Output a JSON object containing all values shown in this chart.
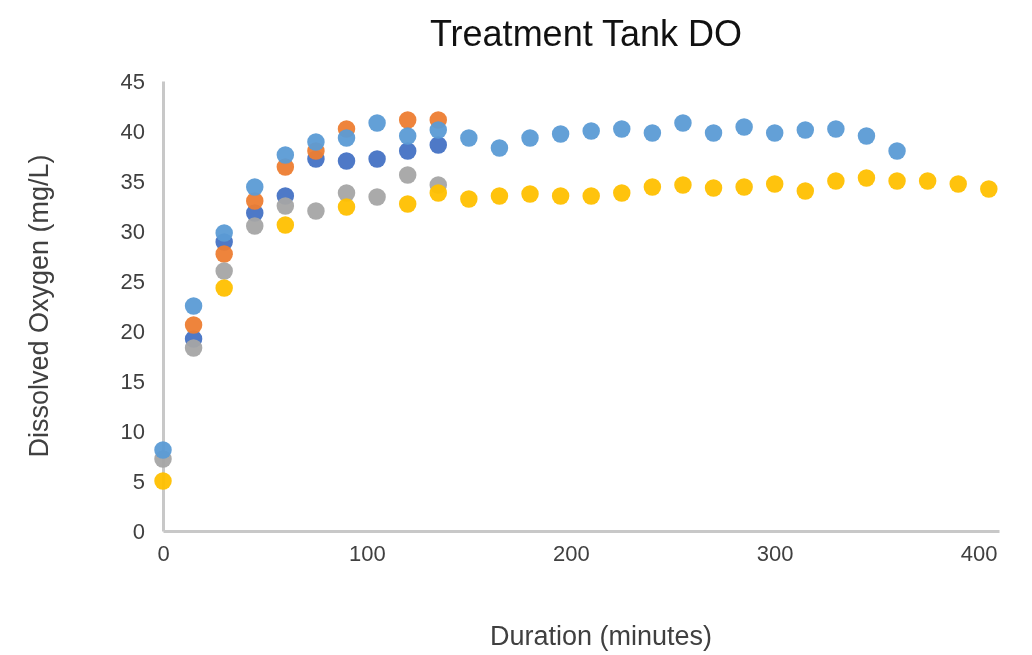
{
  "chart_data": {
    "type": "scatter",
    "title": "Treatment Tank DO",
    "xlabel": "Duration (minutes)",
    "ylabel": "Dissolved Oxygen (mg/L)",
    "xlim": [
      0,
      410
    ],
    "xticks": [
      0,
      100,
      200,
      300,
      400
    ],
    "ylim": [
      0,
      45
    ],
    "yticks": [
      0,
      5,
      10,
      15,
      20,
      25,
      30,
      35,
      40,
      45
    ],
    "grid": false,
    "marker": "circle",
    "series": [
      {
        "color": "#4472c4",
        "x": [
          15,
          30,
          45,
          60,
          75,
          90,
          105,
          120,
          135
        ],
        "values": [
          19.2,
          28.9,
          31.8,
          33.5,
          37.2,
          37,
          37.2,
          38,
          38.6
        ]
      },
      {
        "color": "#ed7d31",
        "x": [
          15,
          30,
          45,
          60,
          75,
          90,
          120,
          135
        ],
        "values": [
          20.6,
          27.7,
          33,
          36.4,
          38,
          40.2,
          41.1,
          41.1
        ]
      },
      {
        "color": "#a5a5a5",
        "x": [
          0,
          15,
          30,
          45,
          60,
          75,
          90,
          105,
          120,
          135
        ],
        "values": [
          7.2,
          18.3,
          26,
          30.5,
          32.5,
          32,
          33.8,
          33.4,
          35.6,
          34.6
        ]
      },
      {
        "color": "#ffc000",
        "x": [
          0,
          30,
          60,
          90,
          120,
          135,
          150,
          165,
          180,
          195,
          210,
          225,
          240,
          255,
          270,
          285,
          300,
          315,
          330,
          345,
          360,
          375,
          390,
          405
        ],
        "values": [
          5,
          24.3,
          30.6,
          32.4,
          32.7,
          33.8,
          33.2,
          33.5,
          33.7,
          33.5,
          33.5,
          33.8,
          34.4,
          34.6,
          34.3,
          34.4,
          34.7,
          34,
          35,
          35.3,
          35,
          35,
          34.7,
          34.2
        ]
      },
      {
        "color": "#5b9bd5",
        "x": [
          0,
          15,
          30,
          45,
          60,
          75,
          90,
          105,
          120,
          135,
          150,
          165,
          180,
          195,
          210,
          225,
          240,
          255,
          270,
          285,
          300,
          315,
          330,
          345,
          360
        ],
        "values": [
          8.1,
          22.5,
          29.8,
          34.4,
          37.6,
          38.9,
          39.3,
          40.8,
          39.5,
          40.1,
          39.3,
          38.3,
          39.3,
          39.7,
          40,
          40.2,
          39.8,
          40.8,
          39.8,
          40.4,
          39.8,
          40.1,
          40.2,
          39.5,
          38
        ]
      }
    ]
  }
}
